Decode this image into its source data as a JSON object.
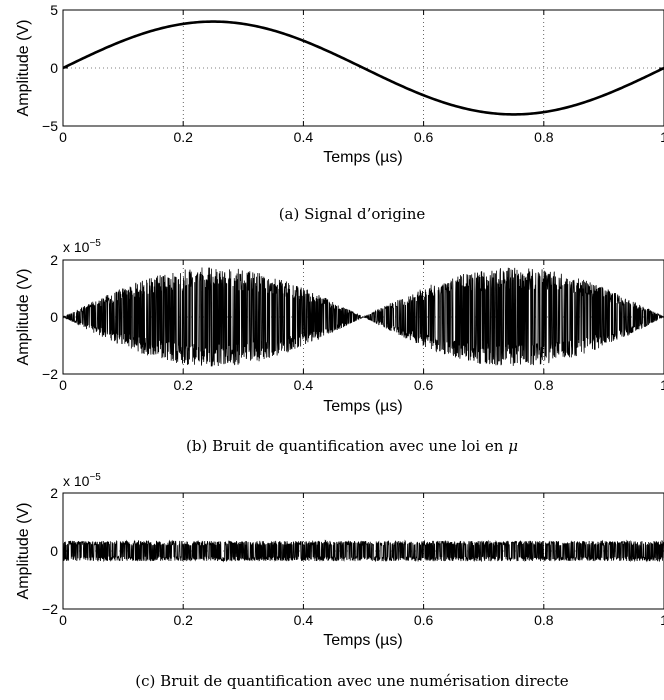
{
  "figure": {
    "panels": [
      {
        "caption": "(a) Signal d’origine",
        "multiplier_base": "",
        "multiplier_exp": ""
      },
      {
        "caption": "(b) Bruit de quantification avec une loi en",
        "caption_symbol": "μ",
        "multiplier_base": "x 10",
        "multiplier_exp": "−5"
      },
      {
        "caption": "(c) Bruit de quantification avec une numérisation directe",
        "multiplier_base": "x 10",
        "multiplier_exp": "−5"
      }
    ]
  },
  "chart_data": [
    {
      "type": "line",
      "title": "",
      "xlabel": "Temps (µs)",
      "ylabel": "Amplitude (V)",
      "xlim": [
        0,
        1
      ],
      "ylim": [
        -5,
        5
      ],
      "xticks": [
        "0",
        "0.2",
        "0.4",
        "0.6",
        "0.8",
        "1"
      ],
      "yticks": [
        "−5",
        "0",
        "5"
      ],
      "grid": true,
      "series": [
        {
          "description": "sine",
          "amplitude": 4,
          "frequency_cycles": 1,
          "x": [
            0,
            0.125,
            0.25,
            0.375,
            0.5,
            0.625,
            0.75,
            0.875,
            1
          ],
          "y": [
            0,
            2.83,
            4,
            2.83,
            0,
            -2.83,
            -4,
            -2.83,
            0
          ]
        }
      ],
      "color": "#000000"
    },
    {
      "type": "line",
      "title": "",
      "xlabel": "Temps (µs)",
      "ylabel": "Amplitude (V)",
      "xlim": [
        0,
        1
      ],
      "ylim": [
        -2,
        2
      ],
      "y_scale_factor": 1e-05,
      "xticks": [
        "0",
        "0.2",
        "0.4",
        "0.6",
        "0.8",
        "1"
      ],
      "yticks": [
        "−2",
        "0",
        "2"
      ],
      "grid": true,
      "series": [
        {
          "description": "quantization-noise-mu-law",
          "envelope": "abs-sine",
          "envelope_peak": 1.75,
          "x_range": [
            0,
            1
          ]
        }
      ],
      "color": "#000000"
    },
    {
      "type": "line",
      "title": "",
      "xlabel": "Temps (µs)",
      "ylabel": "Amplitude (V)",
      "xlim": [
        0,
        1
      ],
      "ylim": [
        -2,
        2
      ],
      "y_scale_factor": 1e-05,
      "xticks": [
        "0",
        "0.2",
        "0.4",
        "0.6",
        "0.8",
        "1"
      ],
      "yticks": [
        "−2",
        "0",
        "2"
      ],
      "grid": true,
      "series": [
        {
          "description": "quantization-noise-direct",
          "envelope": "constant",
          "envelope_peak": 0.35,
          "x_range": [
            0,
            1
          ]
        }
      ],
      "color": "#000000"
    }
  ]
}
